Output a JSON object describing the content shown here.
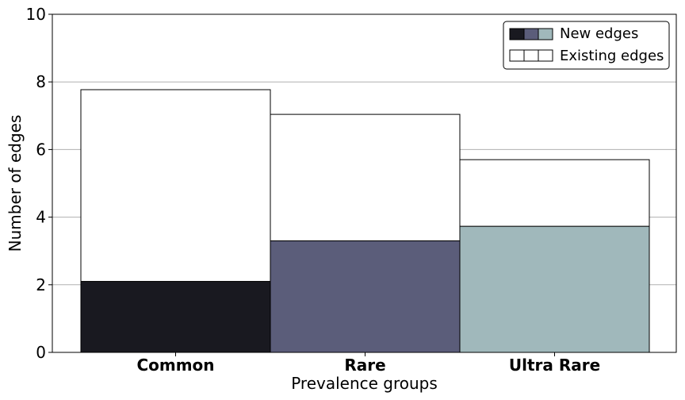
{
  "chart_data": {
    "type": "bar",
    "stacked": true,
    "title": "",
    "xlabel": "Prevalence groups",
    "ylabel": "Number of edges",
    "ylim": [
      0,
      10
    ],
    "yticks": [
      0,
      2,
      4,
      6,
      8,
      10
    ],
    "grid": "y",
    "categories": [
      "Common",
      "Rare",
      "Ultra Rare"
    ],
    "category_colors": [
      "#191920",
      "#5b5d7a",
      "#a0b8bb"
    ],
    "series": [
      {
        "name": "New edges",
        "values": [
          2.1,
          3.3,
          3.73
        ]
      },
      {
        "name": "Existing edges",
        "values": [
          5.67,
          3.74,
          1.97
        ]
      }
    ],
    "legend": {
      "placement": "top-right",
      "entries": [
        "New edges",
        "Existing edges"
      ]
    }
  }
}
